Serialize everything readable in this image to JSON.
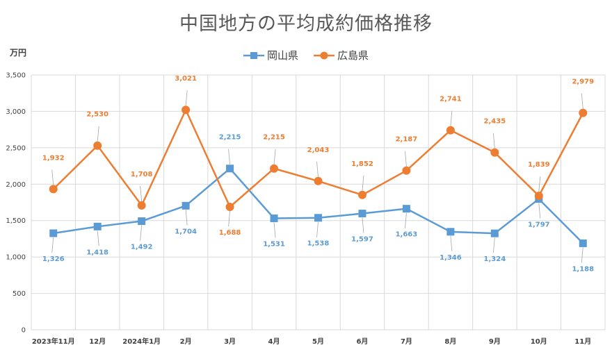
{
  "chart_data": {
    "type": "line",
    "title": "中国地方の平均成約価格推移",
    "unit_label": "万円",
    "categories": [
      "2023年11月",
      "12月",
      "2024年1月",
      "2月",
      "3月",
      "4月",
      "5月",
      "6月",
      "7月",
      "8月",
      "9月",
      "10月",
      "11月"
    ],
    "ylim": [
      0,
      3500
    ],
    "yticks": [
      "0",
      "500",
      "1,000",
      "1,500",
      "2,000",
      "2,500",
      "3,000",
      "3,500"
    ],
    "grid": true,
    "legend_position": "top",
    "series": [
      {
        "name": "岡山県",
        "color": "#5B9BD5",
        "marker": "square",
        "values": [
          1326,
          1418,
          1492,
          1704,
          2215,
          1531,
          1538,
          1597,
          1663,
          1346,
          1324,
          1797,
          1188
        ],
        "labels": [
          "1,326",
          "1,418",
          "1,492",
          "1,704",
          "2,215",
          "1,531",
          "1,538",
          "1,597",
          "1,663",
          "1,346",
          "1,324",
          "1,797",
          "1,188"
        ]
      },
      {
        "name": "広島県",
        "color": "#ED7D31",
        "marker": "circle",
        "values": [
          1932,
          2530,
          1708,
          3021,
          1688,
          2215,
          2043,
          1852,
          2187,
          2741,
          2435,
          1839,
          2979
        ],
        "labels": [
          "1,932",
          "2,530",
          "1,708",
          "3,021",
          "1,688",
          "2,215",
          "2,043",
          "1,852",
          "2,187",
          "2,741",
          "2,435",
          "1,839",
          "2,979"
        ]
      }
    ]
  }
}
